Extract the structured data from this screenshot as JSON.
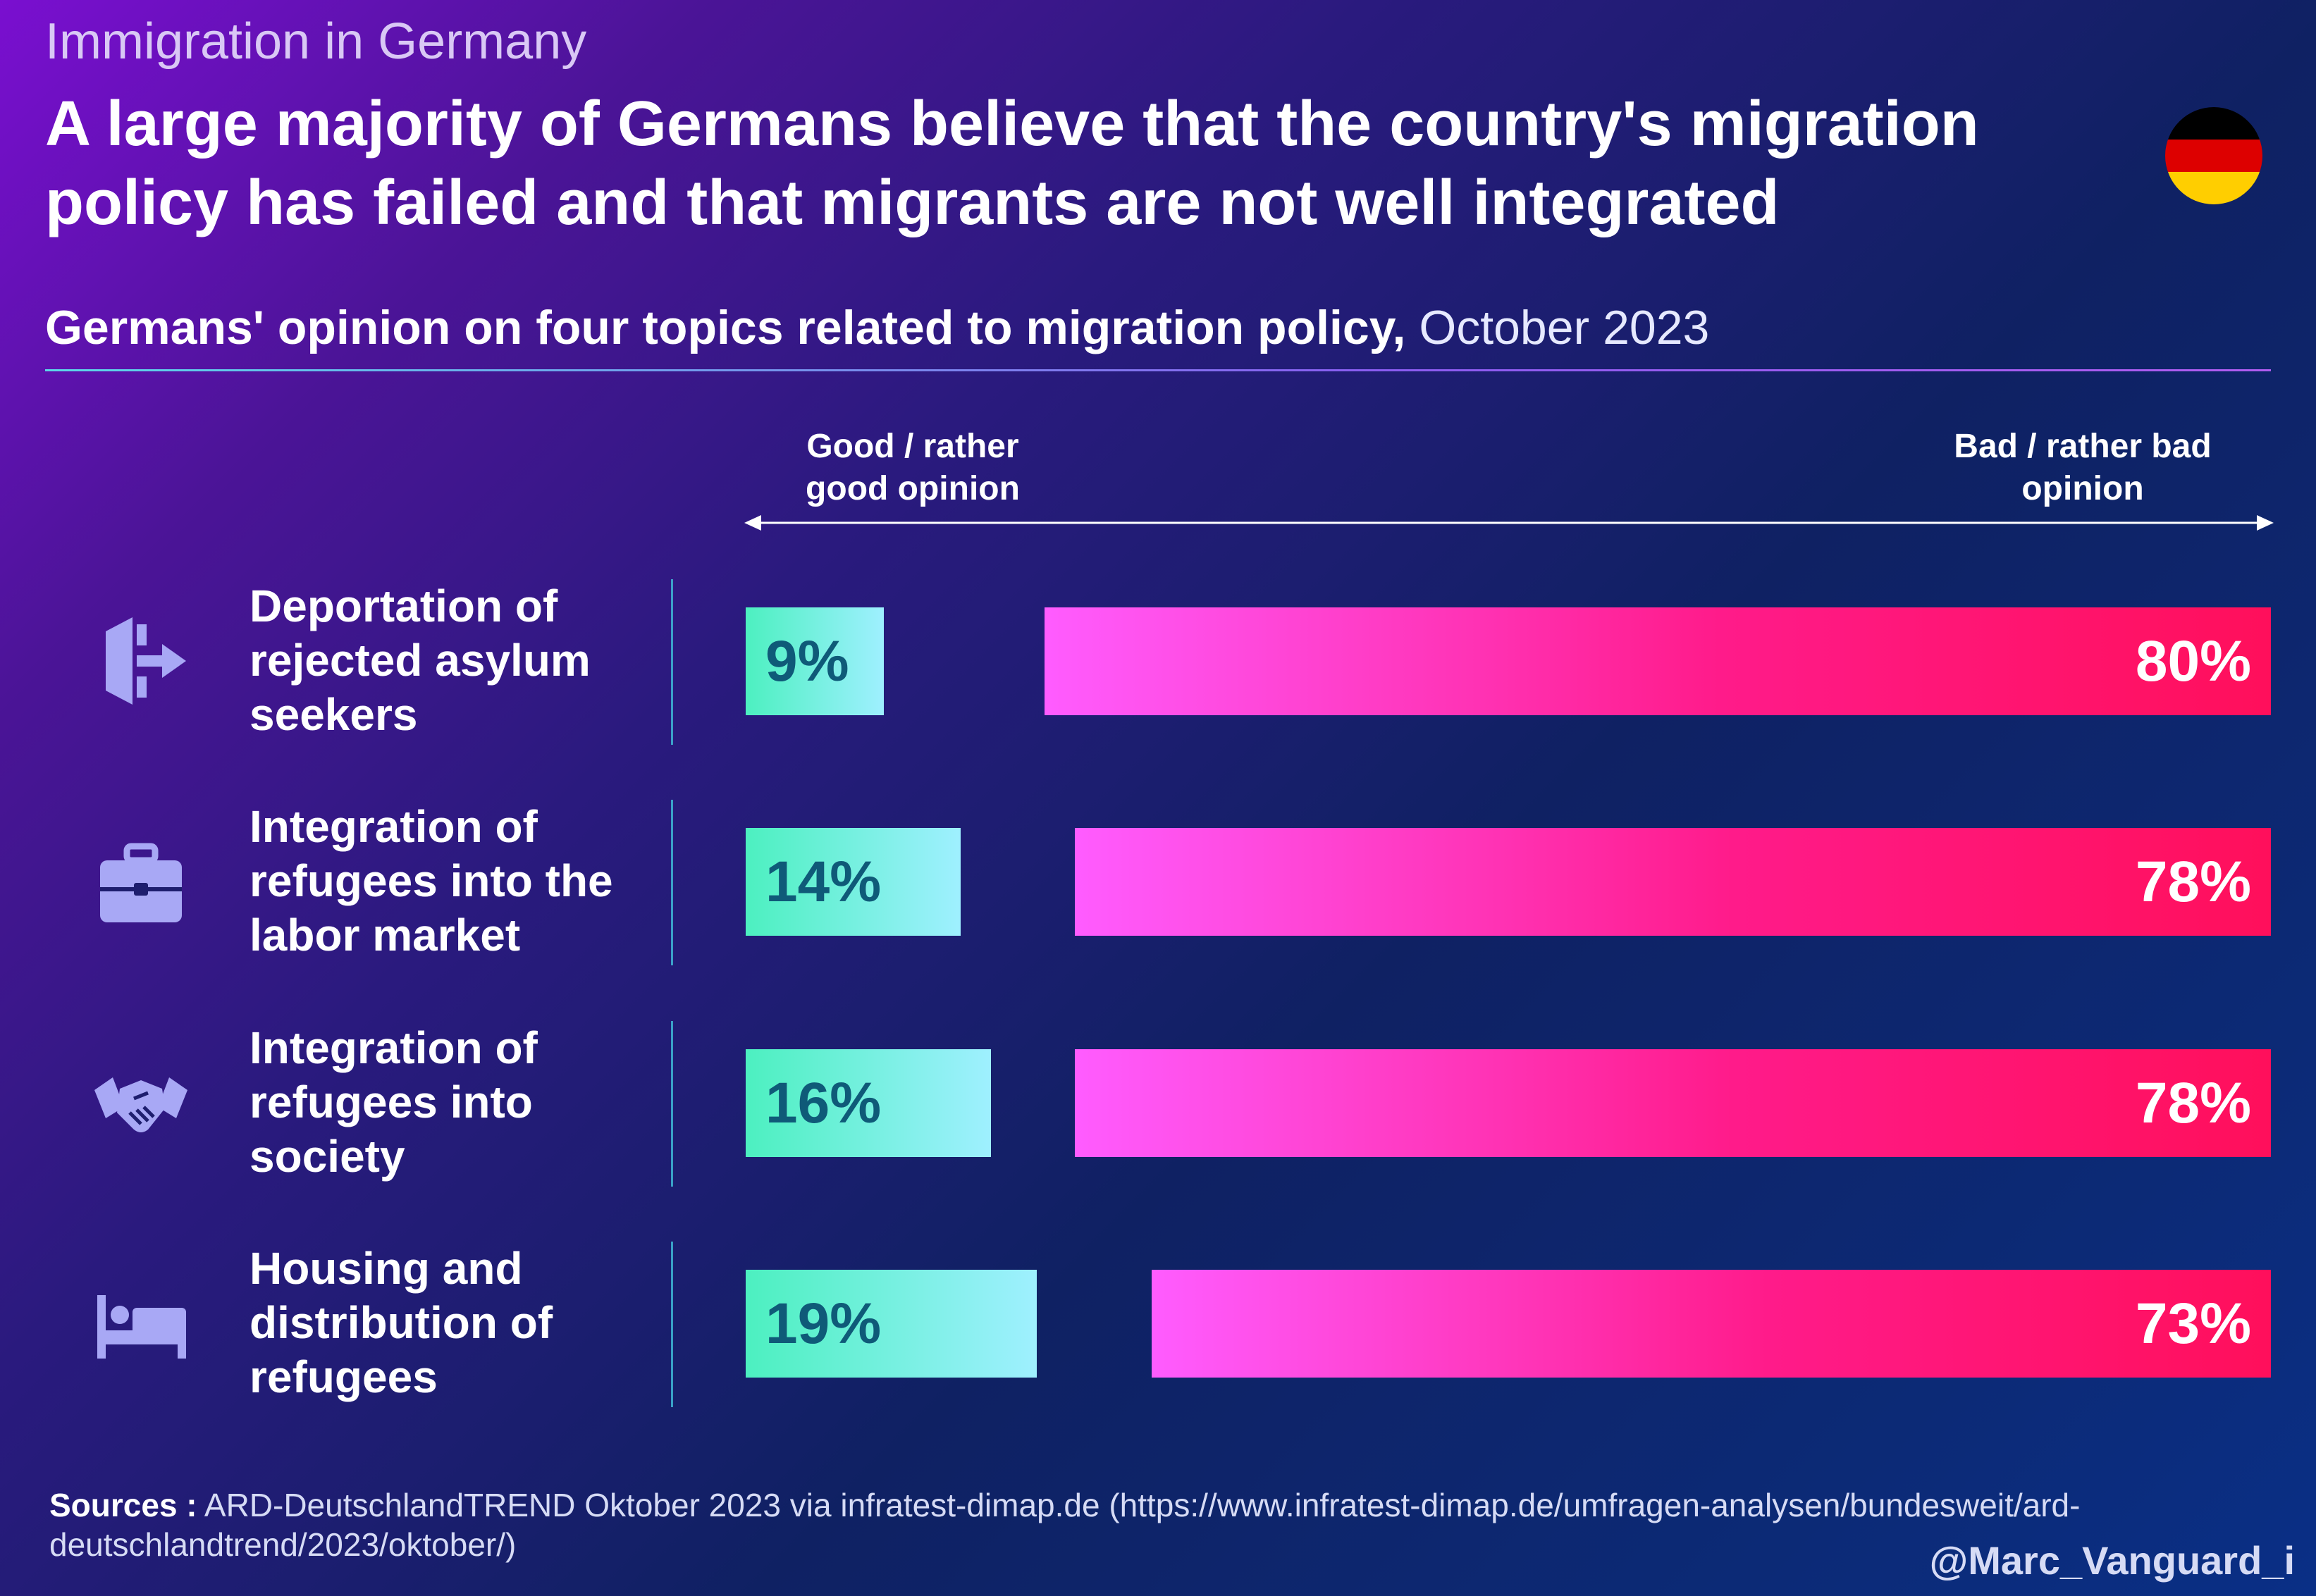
{
  "kicker": "Immigration in Germany",
  "headline": "A large majority of Germans believe that the country's migration policy has failed and that migrants are not well integrated",
  "flag_colors": [
    "#000000",
    "#dd0000",
    "#ffce00"
  ],
  "subtitle": {
    "bold": "Germans' opinion on four topics related to migration policy,",
    "light": "October 2023"
  },
  "chart_data": {
    "type": "bar",
    "orientation": "horizontal",
    "title": "Germans' opinion on four topics related to migration policy, October 2023",
    "categories": [
      "Deportation of rejected asylum seekers",
      "Integration of refugees into the labor market",
      "Integration of refugees into society",
      "Housing and distribution of refugees"
    ],
    "series": [
      {
        "name": "Good / rather good opinion",
        "values": [
          9,
          14,
          16,
          19
        ],
        "value_labels": [
          "9%",
          "14%",
          "16%",
          "19%"
        ],
        "color": "#4cf0c0"
      },
      {
        "name": "Bad / rather bad opinion",
        "values": [
          80,
          78,
          78,
          73
        ],
        "value_labels": [
          "80%",
          "78%",
          "78%",
          "73%"
        ],
        "color": "#ff1b8a"
      }
    ],
    "unit": "%",
    "xlim": [
      0,
      100
    ],
    "legend": "top",
    "grid": false
  },
  "direction_labels": {
    "good_line1": "Good / rather",
    "good_line2": "good opinion",
    "bad_line1": "Bad / rather bad",
    "bad_line2": "opinion"
  },
  "rows": [
    {
      "icon": "exit-door-icon",
      "line1": "Deportation of",
      "line2": "rejected asylum",
      "line3": "seekers"
    },
    {
      "icon": "briefcase-icon",
      "line1": "Integration of",
      "line2": "refugees into the",
      "line3": "labor market"
    },
    {
      "icon": "handshake-icon",
      "line1": "Integration of",
      "line2": "refugees into",
      "line3": "society"
    },
    {
      "icon": "bed-icon",
      "line1": "Housing and",
      "line2": "distribution of",
      "line3": "refugees"
    }
  ],
  "sources": {
    "label": "Sources :",
    "text": "ARD-DeutschlandTREND Oktober 2023 via infratest-dimap.de (https://www.infratest-dimap.de/umfragen-analysen/bundesweit/ard-deutschlandtrend/2023/oktober/)"
  },
  "handle": "@Marc_Vanguard_i"
}
